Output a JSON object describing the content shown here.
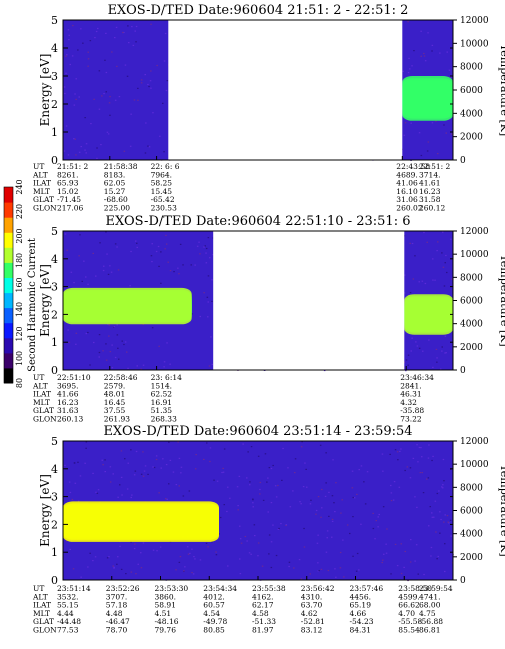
{
  "colorbar": {
    "label": "Second Harmonic Current",
    "ticks": [
      "80",
      "100",
      "120",
      "140",
      "160",
      "180",
      "200",
      "220",
      "240"
    ],
    "colors": [
      "#000000",
      "#3a006a",
      "#2a0ab0",
      "#0a18ff",
      "#0a60ff",
      "#00b6ff",
      "#00ffe6",
      "#33ff66",
      "#b2ff2e",
      "#ffff00",
      "#ffa200",
      "#ff3a00",
      "#e00000"
    ]
  },
  "panels": [
    {
      "title": "EXOS-D/TED   Date:960604  21:51: 2 - 22:51: 2",
      "ylabel": "Energy [eV]",
      "y2label": "Temperature [K]",
      "yticks": [
        "0",
        "1",
        "2",
        "3",
        "4",
        "5"
      ],
      "y2ticks": [
        "0",
        "2000",
        "4000",
        "6000",
        "8000",
        "10000",
        "12000"
      ],
      "rowlabels": [
        "UT",
        "ALT",
        "ILAT",
        "MLT",
        "GLAT",
        "GLON"
      ],
      "columns": [
        {
          "pos": 0.0,
          "vals": [
            "21:51: 2",
            "8261.",
            "65.93",
            "15.02",
            "-71.45",
            "217.06"
          ]
        },
        {
          "pos": 0.12,
          "vals": [
            "21:58:38",
            "8183.",
            "62.05",
            "15.27",
            "-68.60",
            "225.00"
          ]
        },
        {
          "pos": 0.24,
          "vals": [
            "22: 6: 6",
            "7964.",
            "58.25",
            "15.45",
            "-65.42",
            "230.53"
          ]
        },
        {
          "pos": 0.87,
          "vals": [
            "22:43:58",
            "4689.",
            "41.06",
            "16.10",
            "31.06",
            "260.02"
          ]
        },
        {
          "pos": 1.0,
          "vals": [
            "22:51: 2",
            "3714.",
            "41.61",
            "16.23",
            "31.58",
            "260.12"
          ]
        }
      ],
      "gaps": [
        [
          0.27,
          0.87
        ]
      ],
      "features": [
        {
          "kind": "band",
          "x0": 0.87,
          "x1": 1.0,
          "y": 2.2,
          "sigma": 0.55,
          "intensity": 0.55
        }
      ]
    },
    {
      "title": "EXOS-D/TED   Date:960604  22:51:10 - 23:51: 6",
      "ylabel": "Energy [eV]",
      "y2label": "Temperature [K]",
      "yticks": [
        "0",
        "1",
        "2",
        "3",
        "4",
        "5"
      ],
      "y2ticks": [
        "0",
        "2000",
        "4000",
        "6000",
        "8000",
        "10000",
        "12000"
      ],
      "rowlabels": [
        "UT",
        "ALT",
        "ILAT",
        "MLT",
        "GLAT",
        "GLON"
      ],
      "columns": [
        {
          "pos": 0.0,
          "vals": [
            "22:51:10",
            "3695.",
            "41.66",
            "16.23",
            "31.63",
            "260.13"
          ]
        },
        {
          "pos": 0.12,
          "vals": [
            "22:58:46",
            "2579.",
            "48.01",
            "16.45",
            "37.55",
            "261.93"
          ]
        },
        {
          "pos": 0.24,
          "vals": [
            "23: 6:14",
            "1514.",
            "62.52",
            "16.91",
            "51.35",
            "268.33"
          ]
        },
        {
          "pos": 0.88,
          "vals": [
            "23:46:34",
            "2841.",
            "46.31",
            "4.32",
            "-35.88",
            "73.22"
          ]
        }
      ],
      "gaps": [
        [
          0.385,
          0.875
        ]
      ],
      "features": [
        {
          "kind": "band",
          "x0": 0.0,
          "x1": 0.33,
          "y": 2.3,
          "sigma": 0.45,
          "intensity": 0.7
        },
        {
          "kind": "band",
          "x0": 0.875,
          "x1": 1.0,
          "y": 2.0,
          "sigma": 0.5,
          "intensity": 0.7
        }
      ]
    },
    {
      "title": "EXOS-D/TED   Date:960604  23:51:14 - 23:59:54",
      "ylabel": "Energy [eV]",
      "y2label": "Temperature [K]",
      "yticks": [
        "0",
        "1",
        "2",
        "3",
        "4",
        "5"
      ],
      "y2ticks": [
        "0",
        "2000",
        "4000",
        "6000",
        "8000",
        "10000",
        "12000"
      ],
      "rowlabels": [
        "UT",
        "ALT",
        "ILAT",
        "MLT",
        "GLAT",
        "GLON"
      ],
      "columns": [
        {
          "pos": 0.0,
          "vals": [
            "23:51:14",
            "3532.",
            "55.15",
            "4.44",
            "-44.48",
            "77.53"
          ]
        },
        {
          "pos": 0.125,
          "vals": [
            "23:52:26",
            "3707.",
            "57.18",
            "4.48",
            "-46.47",
            "78.70"
          ]
        },
        {
          "pos": 0.25,
          "vals": [
            "23:53:30",
            "3860.",
            "58.91",
            "4.51",
            "-48.16",
            "79.76"
          ]
        },
        {
          "pos": 0.375,
          "vals": [
            "23:54:34",
            "4012.",
            "60.57",
            "4.54",
            "-49.78",
            "80.85"
          ]
        },
        {
          "pos": 0.5,
          "vals": [
            "23:55:38",
            "4162.",
            "62.17",
            "4.58",
            "-51.33",
            "81.97"
          ]
        },
        {
          "pos": 0.625,
          "vals": [
            "23:56:42",
            "4310.",
            "63.70",
            "4.62",
            "-52.81",
            "83.12"
          ]
        },
        {
          "pos": 0.75,
          "vals": [
            "23:57:46",
            "4456.",
            "65.19",
            "4.66",
            "-54.23",
            "84.31"
          ]
        },
        {
          "pos": 0.875,
          "vals": [
            "23:58:50",
            "4599.",
            "66.62",
            "4.70",
            "-55.58",
            "85.54"
          ]
        },
        {
          "pos": 1.0,
          "vals": [
            "23:59:54",
            "4741.",
            "68.00",
            "4.75",
            "-56.88",
            "86.81"
          ]
        }
      ],
      "gaps": [],
      "features": [
        {
          "kind": "band",
          "x0": 0.0,
          "x1": 0.4,
          "y": 2.1,
          "sigma": 0.5,
          "intensity": 0.85
        }
      ]
    }
  ],
  "chart_data": {
    "type": "heatmap",
    "colorbar_label": "Second Harmonic Current",
    "colorbar_range": [
      80,
      240
    ],
    "panels": [
      {
        "title": "EXOS-D/TED   Date:960604  21:51: 2 - 22:51: 2",
        "ylabel": "Energy [eV]",
        "ylim": [
          0,
          5
        ],
        "y2label": "Temperature [K]",
        "y2lim": [
          0,
          12000
        ]
      },
      {
        "title": "EXOS-D/TED   Date:960604  22:51:10 - 23:51: 6",
        "ylabel": "Energy [eV]",
        "ylim": [
          0,
          5
        ],
        "y2label": "Temperature [K]",
        "y2lim": [
          0,
          12000
        ]
      },
      {
        "title": "EXOS-D/TED   Date:960604  23:51:14 - 23:59:54",
        "ylabel": "Energy [eV]",
        "ylim": [
          0,
          5
        ],
        "y2label": "Temperature [K]",
        "y2lim": [
          0,
          12000
        ]
      }
    ]
  }
}
